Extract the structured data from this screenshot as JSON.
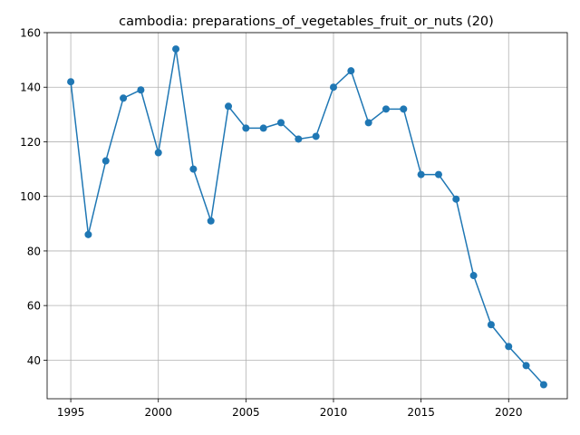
{
  "chart_data": {
    "type": "line",
    "title": "cambodia: preparations_of_vegetables_fruit_or_nuts (20)",
    "xlabel": "",
    "ylabel": "",
    "x": [
      1995,
      1996,
      1997,
      1998,
      1999,
      2000,
      2001,
      2002,
      2003,
      2004,
      2005,
      2006,
      2007,
      2008,
      2009,
      2010,
      2011,
      2012,
      2013,
      2014,
      2015,
      2016,
      2017,
      2018,
      2019,
      2020,
      2021,
      2022
    ],
    "series": [
      {
        "values": [
          142,
          86,
          113,
          136,
          139,
          116,
          154,
          110,
          91,
          133,
          125,
          125,
          127,
          121,
          122,
          140,
          146,
          127,
          132,
          132,
          108,
          108,
          99,
          71,
          53,
          45,
          38,
          31
        ],
        "color": "#1f77b4",
        "marker": "circle"
      }
    ],
    "xlim": [
      1993.65,
      2023.35
    ],
    "ylim": [
      25.85,
      160
    ],
    "xticks": [
      1995,
      2000,
      2005,
      2010,
      2015,
      2020
    ],
    "yticks": [
      40,
      60,
      80,
      100,
      120,
      140,
      160
    ],
    "grid": true,
    "legend": "none"
  }
}
